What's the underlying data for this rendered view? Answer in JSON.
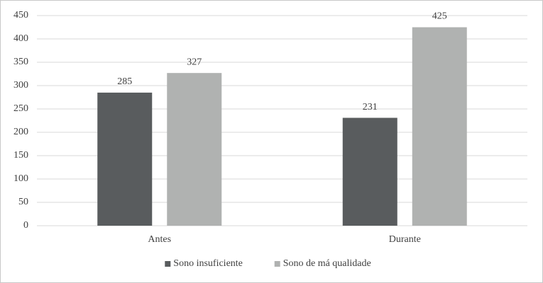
{
  "chart_data": {
    "type": "bar",
    "categories": [
      "Antes",
      "Durante"
    ],
    "series": [
      {
        "name": "Sono insuficiente",
        "color": "#595c5e",
        "values": [
          285,
          231
        ]
      },
      {
        "name": "Sono de má qualidade",
        "color": "#b0b2b1",
        "values": [
          327,
          425
        ]
      }
    ],
    "ylim": [
      0,
      450
    ],
    "yticks": [
      0,
      50,
      100,
      150,
      200,
      250,
      300,
      350,
      400,
      450
    ],
    "grid": true,
    "legend": "bottom"
  }
}
